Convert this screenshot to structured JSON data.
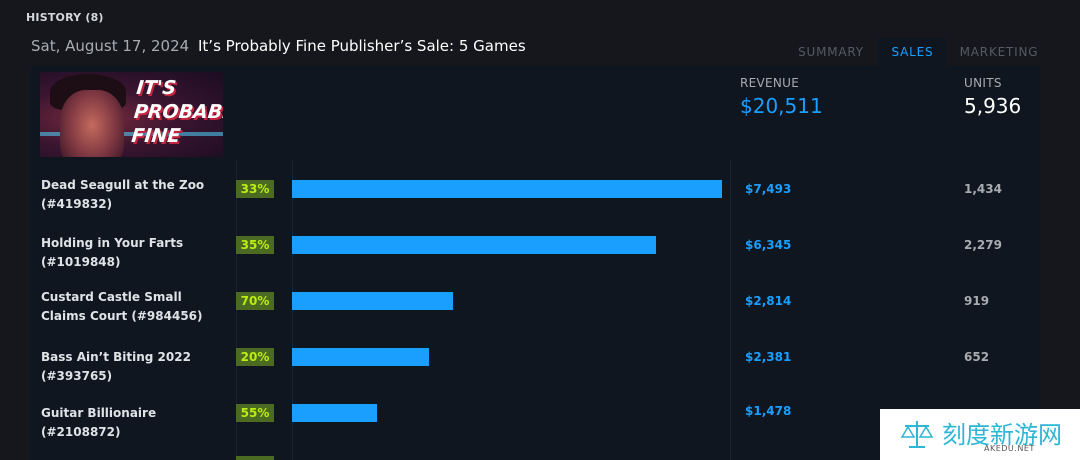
{
  "history": {
    "title": "HISTORY (8)"
  },
  "event": {
    "date": "Sat, August 17, 2024",
    "title": "It’s Probably Fine Publisher’s Sale: 5 Games"
  },
  "tabs": [
    {
      "label": "SUMMARY",
      "active": false
    },
    {
      "label": "SALES",
      "active": true
    },
    {
      "label": "MARKETING",
      "active": false
    }
  ],
  "capsule": {
    "logo_text": "IT'S PROBABLY FINE"
  },
  "totals": {
    "revenue_label": "REVENUE",
    "revenue_value": "$20,511",
    "units_label": "UNITS",
    "units_value": "5,936"
  },
  "games": [
    {
      "name": "Dead Seagull at the Zoo (#419832)",
      "discount": "33%",
      "revenue": "$7,493",
      "revenue_num": 7493,
      "units": "1,434"
    },
    {
      "name": "Holding in Your Farts (#1019848)",
      "discount": "35%",
      "revenue": "$6,345",
      "revenue_num": 6345,
      "units": "2,279"
    },
    {
      "name": "Custard Castle Small Claims Court (#984456)",
      "discount": "70%",
      "revenue": "$2,814",
      "revenue_num": 2814,
      "units": "919"
    },
    {
      "name": "Bass Ain’t Biting 2022 (#393765)",
      "discount": "20%",
      "revenue": "$2,381",
      "revenue_num": 2381,
      "units": "652"
    },
    {
      "name": "Guitar Billionaire (#2108872)",
      "discount": "55%",
      "revenue": "$1,478",
      "revenue_num": 1478,
      "units": ""
    }
  ],
  "watermark": {
    "text": "刻度新游网",
    "sub": "AKEDU.NET"
  },
  "colors": {
    "accent": "#1a9fff",
    "discount_bg": "#4c6b22",
    "discount_fg": "#beee11",
    "panel": "#0f1620",
    "page": "#15171c"
  }
}
